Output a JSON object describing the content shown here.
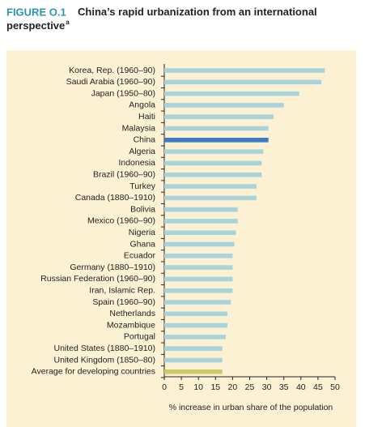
{
  "chart_data": {
    "type": "barh",
    "figure_label": "FIGURE O.1",
    "title": "China’s rapid urbanization from an international perspective",
    "title_note": "a",
    "xlabel": "% increase in urban share of the population",
    "categories": [
      "Korea, Rep. (1960–90)",
      "Saudi Arabia (1960–90)",
      "Japan (1950–80)",
      "Angola",
      "Haiti",
      "Malaysia",
      "China",
      "Algeria",
      "Indonesia",
      "Brazil (1960–90)",
      "Turkey",
      "Canada (1880–1910)",
      "Bolivia",
      "Mexico (1960–90)",
      "Nigeria",
      "Ghana",
      "Ecuador",
      "Germany (1880–1910)",
      "Russian Federation (1960–90)",
      "Iran, Islamic Rep.",
      "Spain (1960–90)",
      "Netherlands",
      "Mozambique",
      "Portugal",
      "United States (1880–1910)",
      "United Kingdom (1850–80)",
      "Average for developing countries"
    ],
    "values": [
      47,
      46,
      39.5,
      35,
      32,
      30.5,
      30.5,
      29,
      28.5,
      28.5,
      27,
      27,
      21.5,
      21.5,
      21,
      20.5,
      20,
      20,
      20,
      20,
      19.5,
      18.5,
      18.5,
      18,
      17,
      17,
      17
    ],
    "colors": [
      "#a9d3db",
      "#a9d3db",
      "#a9d3db",
      "#a9d3db",
      "#a9d3db",
      "#a9d3db",
      "#3b7cc4",
      "#a9d3db",
      "#a9d3db",
      "#a9d3db",
      "#a9d3db",
      "#a9d3db",
      "#a9d3db",
      "#a9d3db",
      "#a9d3db",
      "#a9d3db",
      "#a9d3db",
      "#a9d3db",
      "#a9d3db",
      "#a9d3db",
      "#a9d3db",
      "#a9d3db",
      "#a9d3db",
      "#a9d3db",
      "#a9d3db",
      "#a9d3db",
      "#c9cc6a"
    ],
    "xlim": [
      0,
      50
    ],
    "xticks": [
      0,
      5,
      10,
      15,
      20,
      25,
      30,
      35,
      40,
      45,
      50
    ]
  }
}
